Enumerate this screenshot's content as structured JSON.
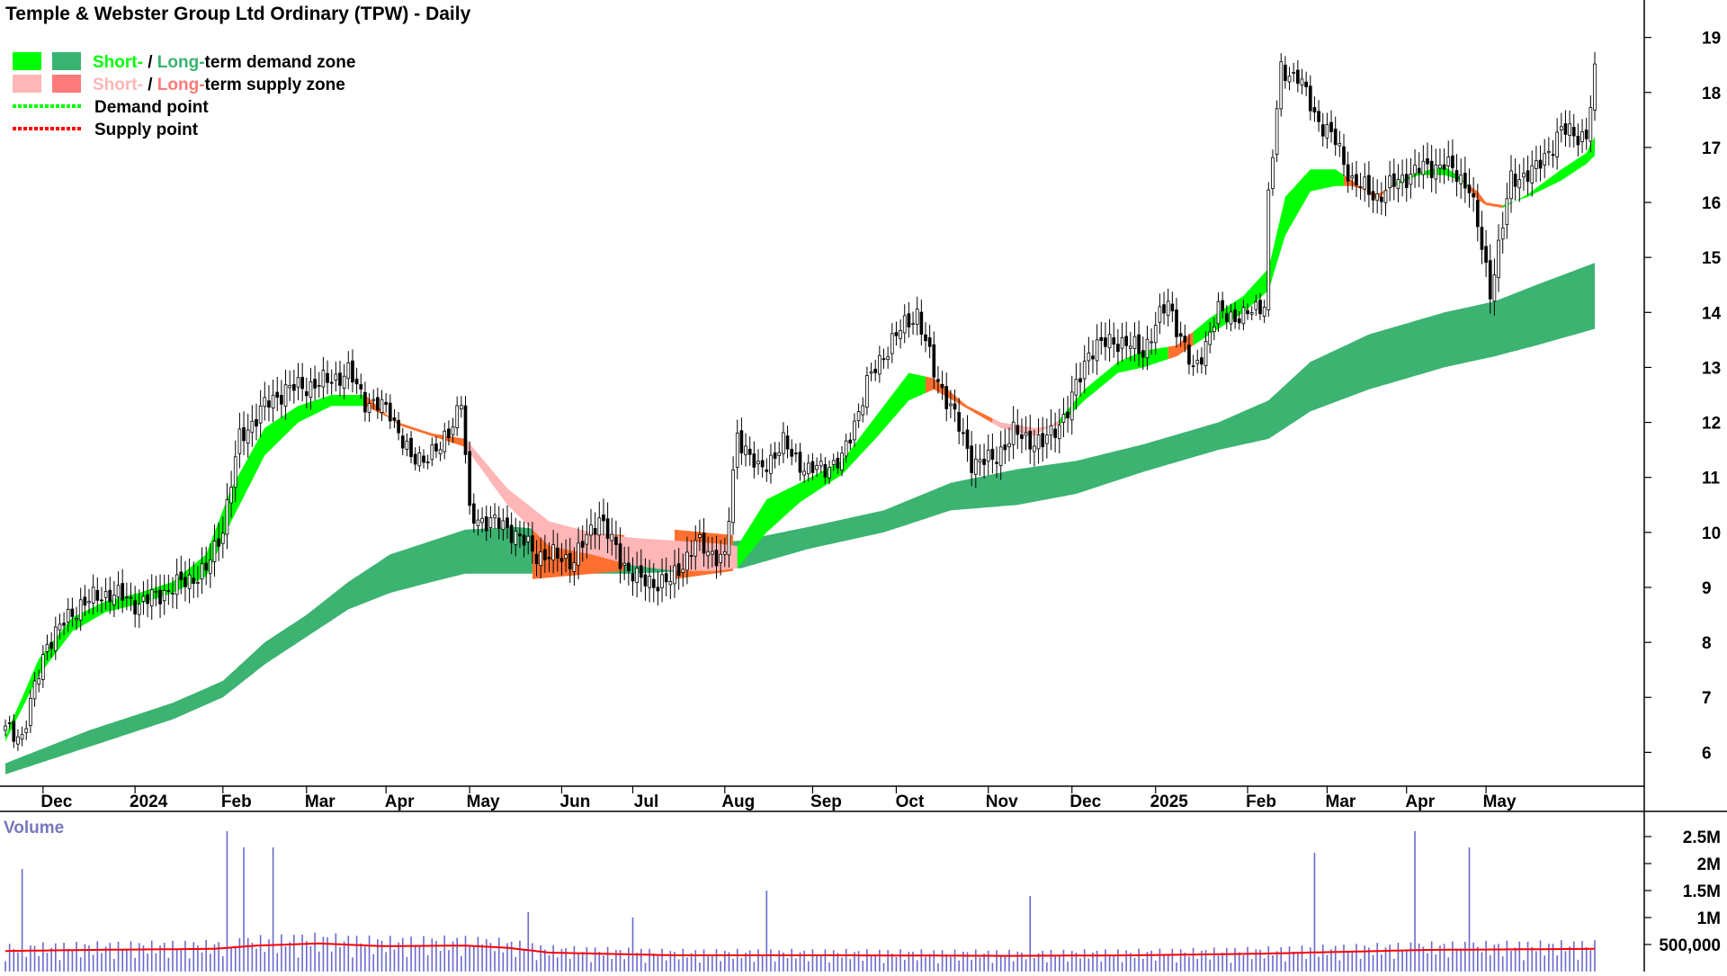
{
  "chart_data": {
    "type": "candlestick",
    "title": "Temple & Webster Group Ltd Ordinary (TPW) - Daily",
    "legend": [
      {
        "key": "demand_zone",
        "parts": [
          "Short-",
          " / ",
          "Long-",
          "term demand zone"
        ],
        "colors": [
          "#00ff00",
          "#39b371"
        ]
      },
      {
        "key": "supply_zone",
        "parts": [
          "Short-",
          " / ",
          "Long-",
          "term supply zone"
        ],
        "colors": [
          "#ffb6b6",
          "#ff7a7a"
        ]
      },
      {
        "key": "demand_point",
        "label": "Demand point",
        "color": "#00ff00"
      },
      {
        "key": "supply_point",
        "label": "Supply point",
        "color": "#ff0000"
      }
    ],
    "price_axis": {
      "ticks": [
        6,
        7,
        8,
        9,
        10,
        11,
        12,
        13,
        14,
        15,
        16,
        17,
        18,
        19
      ],
      "ylim": [
        5.45,
        19.55
      ],
      "side": "right"
    },
    "months": [
      "Dec",
      "2024",
      "Feb",
      "Mar",
      "Apr",
      "May",
      "Jun",
      "Jul",
      "Aug",
      "Sep",
      "Oct",
      "Nov",
      "Dec",
      "2025",
      "Feb",
      "Mar",
      "Apr",
      "May"
    ],
    "price_anchors": [
      [
        0,
        6.4
      ],
      [
        4,
        6.3
      ],
      [
        10,
        8.0
      ],
      [
        18,
        8.7
      ],
      [
        25,
        8.9
      ],
      [
        32,
        8.7
      ],
      [
        40,
        9.0
      ],
      [
        48,
        9.3
      ],
      [
        52,
        10.1
      ],
      [
        56,
        11.7
      ],
      [
        62,
        12.3
      ],
      [
        67,
        12.6
      ],
      [
        75,
        12.7
      ],
      [
        82,
        12.9
      ],
      [
        86,
        12.4
      ],
      [
        92,
        12.2
      ],
      [
        97,
        11.3
      ],
      [
        104,
        11.5
      ],
      [
        109,
        12.4
      ],
      [
        111,
        10.3
      ],
      [
        120,
        10.1
      ],
      [
        127,
        9.6
      ],
      [
        136,
        9.5
      ],
      [
        142,
        10.3
      ],
      [
        147,
        9.5
      ],
      [
        152,
        9.1
      ],
      [
        159,
        9.1
      ],
      [
        165,
        9.8
      ],
      [
        172,
        9.5
      ],
      [
        175,
        11.8
      ],
      [
        180,
        11.1
      ],
      [
        186,
        11.6
      ],
      [
        192,
        11.1
      ],
      [
        200,
        11.3
      ],
      [
        206,
        12.7
      ],
      [
        212,
        13.5
      ],
      [
        218,
        14.0
      ],
      [
        222,
        12.9
      ],
      [
        226,
        12.3
      ],
      [
        231,
        11.3
      ],
      [
        236,
        11.3
      ],
      [
        241,
        11.8
      ],
      [
        248,
        11.6
      ],
      [
        254,
        12.2
      ],
      [
        259,
        13.3
      ],
      [
        265,
        13.5
      ],
      [
        272,
        13.3
      ],
      [
        278,
        14.2
      ],
      [
        284,
        12.9
      ],
      [
        290,
        14.0
      ],
      [
        296,
        13.9
      ],
      [
        301,
        14.2
      ],
      [
        302,
        16.1
      ],
      [
        305,
        18.4
      ],
      [
        309,
        18.3
      ],
      [
        313,
        17.6
      ],
      [
        318,
        17.1
      ],
      [
        322,
        16.4
      ],
      [
        328,
        16.1
      ],
      [
        333,
        16.4
      ],
      [
        338,
        16.6
      ],
      [
        344,
        16.7
      ],
      [
        350,
        16.3
      ],
      [
        355,
        14.4
      ],
      [
        360,
        16.4
      ],
      [
        366,
        16.6
      ],
      [
        372,
        17.3
      ],
      [
        378,
        17.2
      ],
      [
        380,
        18.3
      ]
    ],
    "short_term_zone_anchors": [
      [
        0,
        6.2,
        6.3
      ],
      [
        8,
        7.4,
        7.7
      ],
      [
        16,
        8.2,
        8.45
      ],
      [
        24,
        8.55,
        8.75
      ],
      [
        32,
        8.7,
        8.9
      ],
      [
        40,
        8.9,
        9.1
      ],
      [
        48,
        9.2,
        9.6
      ],
      [
        54,
        10.2,
        10.8
      ],
      [
        62,
        11.4,
        11.9
      ],
      [
        70,
        12.0,
        12.3
      ],
      [
        78,
        12.3,
        12.5
      ],
      [
        86,
        12.3,
        12.5
      ],
      [
        94,
        12.0,
        11.95
      ],
      [
        102,
        11.8,
        11.75
      ],
      [
        110,
        11.7,
        11.55
      ],
      [
        120,
        10.8,
        10.5
      ],
      [
        130,
        10.2,
        9.75
      ],
      [
        140,
        10.0,
        9.6
      ],
      [
        150,
        9.9,
        9.4
      ],
      [
        160,
        9.85,
        9.3
      ],
      [
        170,
        9.8,
        9.3
      ],
      [
        175,
        9.75,
        9.35
      ],
      [
        182,
        10.6,
        10.0
      ],
      [
        190,
        10.9,
        10.55
      ],
      [
        200,
        11.3,
        11.05
      ],
      [
        208,
        12.1,
        11.7
      ],
      [
        216,
        12.9,
        12.4
      ],
      [
        222,
        12.8,
        12.6
      ],
      [
        230,
        12.3,
        12.25
      ],
      [
        238,
        12.0,
        11.9
      ],
      [
        246,
        11.9,
        11.75
      ],
      [
        252,
        11.95,
        12.05
      ],
      [
        258,
        12.4,
        12.6
      ],
      [
        266,
        12.9,
        13.1
      ],
      [
        272,
        13.0,
        13.3
      ],
      [
        280,
        13.2,
        13.4
      ],
      [
        288,
        13.6,
        13.9
      ],
      [
        296,
        14.0,
        14.3
      ],
      [
        302,
        14.4,
        14.8
      ],
      [
        306,
        15.4,
        16.1
      ],
      [
        312,
        16.2,
        16.6
      ],
      [
        318,
        16.3,
        16.6
      ],
      [
        322,
        16.3,
        16.4
      ],
      [
        328,
        16.15,
        16.05
      ],
      [
        332,
        16.3,
        16.35
      ],
      [
        338,
        16.5,
        16.55
      ],
      [
        344,
        16.5,
        16.65
      ],
      [
        348,
        16.4,
        16.45
      ],
      [
        352,
        16.2,
        16.05
      ],
      [
        354,
        16.0,
        15.95
      ],
      [
        358,
        15.95,
        15.9
      ],
      [
        364,
        16.1,
        16.15
      ],
      [
        372,
        16.4,
        16.6
      ],
      [
        378,
        16.7,
        16.9
      ],
      [
        380,
        16.85,
        17.2
      ]
    ],
    "long_term_zone_anchors": [
      [
        0,
        5.6,
        5.8
      ],
      [
        20,
        6.1,
        6.4
      ],
      [
        40,
        6.6,
        6.9
      ],
      [
        52,
        7.0,
        7.3
      ],
      [
        62,
        7.6,
        8.0
      ],
      [
        72,
        8.1,
        8.5
      ],
      [
        82,
        8.6,
        9.1
      ],
      [
        92,
        8.9,
        9.6
      ],
      [
        102,
        9.1,
        9.85
      ],
      [
        110,
        9.25,
        10.05
      ],
      [
        122,
        9.25,
        10.1
      ],
      [
        136,
        9.25,
        10.0
      ],
      [
        150,
        9.25,
        9.9
      ],
      [
        164,
        9.3,
        9.8
      ],
      [
        176,
        9.35,
        9.85
      ],
      [
        192,
        9.7,
        10.1
      ],
      [
        210,
        10.0,
        10.4
      ],
      [
        226,
        10.4,
        10.9
      ],
      [
        242,
        10.5,
        11.15
      ],
      [
        256,
        10.7,
        11.3
      ],
      [
        272,
        11.1,
        11.6
      ],
      [
        290,
        11.5,
        12.0
      ],
      [
        302,
        11.7,
        12.4
      ],
      [
        312,
        12.2,
        13.1
      ],
      [
        326,
        12.6,
        13.6
      ],
      [
        344,
        13.0,
        14.0
      ],
      [
        356,
        13.2,
        14.2
      ],
      [
        366,
        13.4,
        14.5
      ],
      [
        380,
        13.7,
        14.9
      ]
    ],
    "volume_axis": {
      "ticks": [
        {
          "value": 2500000,
          "label": "2.5M"
        },
        {
          "value": 2000000,
          "label": "2M"
        },
        {
          "value": 1500000,
          "label": "1.5M"
        },
        {
          "value": 1000000,
          "label": "1M"
        },
        {
          "value": 500000,
          "label": "500,000"
        }
      ],
      "ylim": [
        0,
        2750000
      ],
      "title": "Volume"
    },
    "volume_ma_anchors": [
      [
        0,
        380000
      ],
      [
        20,
        400000
      ],
      [
        50,
        420000
      ],
      [
        60,
        480000
      ],
      [
        75,
        520000
      ],
      [
        90,
        470000
      ],
      [
        110,
        480000
      ],
      [
        120,
        440000
      ],
      [
        130,
        350000
      ],
      [
        160,
        300000
      ],
      [
        200,
        300000
      ],
      [
        240,
        290000
      ],
      [
        270,
        300000
      ],
      [
        300,
        330000
      ],
      [
        340,
        400000
      ],
      [
        380,
        420000
      ]
    ],
    "volume_spikes": [
      [
        4,
        1900000
      ],
      [
        53,
        2600000
      ],
      [
        57,
        2300000
      ],
      [
        64,
        2300000
      ],
      [
        114,
        500000
      ],
      [
        125,
        1100000
      ],
      [
        150,
        1000000
      ],
      [
        182,
        1500000
      ],
      [
        245,
        1400000
      ],
      [
        313,
        2200000
      ],
      [
        337,
        2600000
      ],
      [
        350,
        2300000
      ]
    ]
  }
}
